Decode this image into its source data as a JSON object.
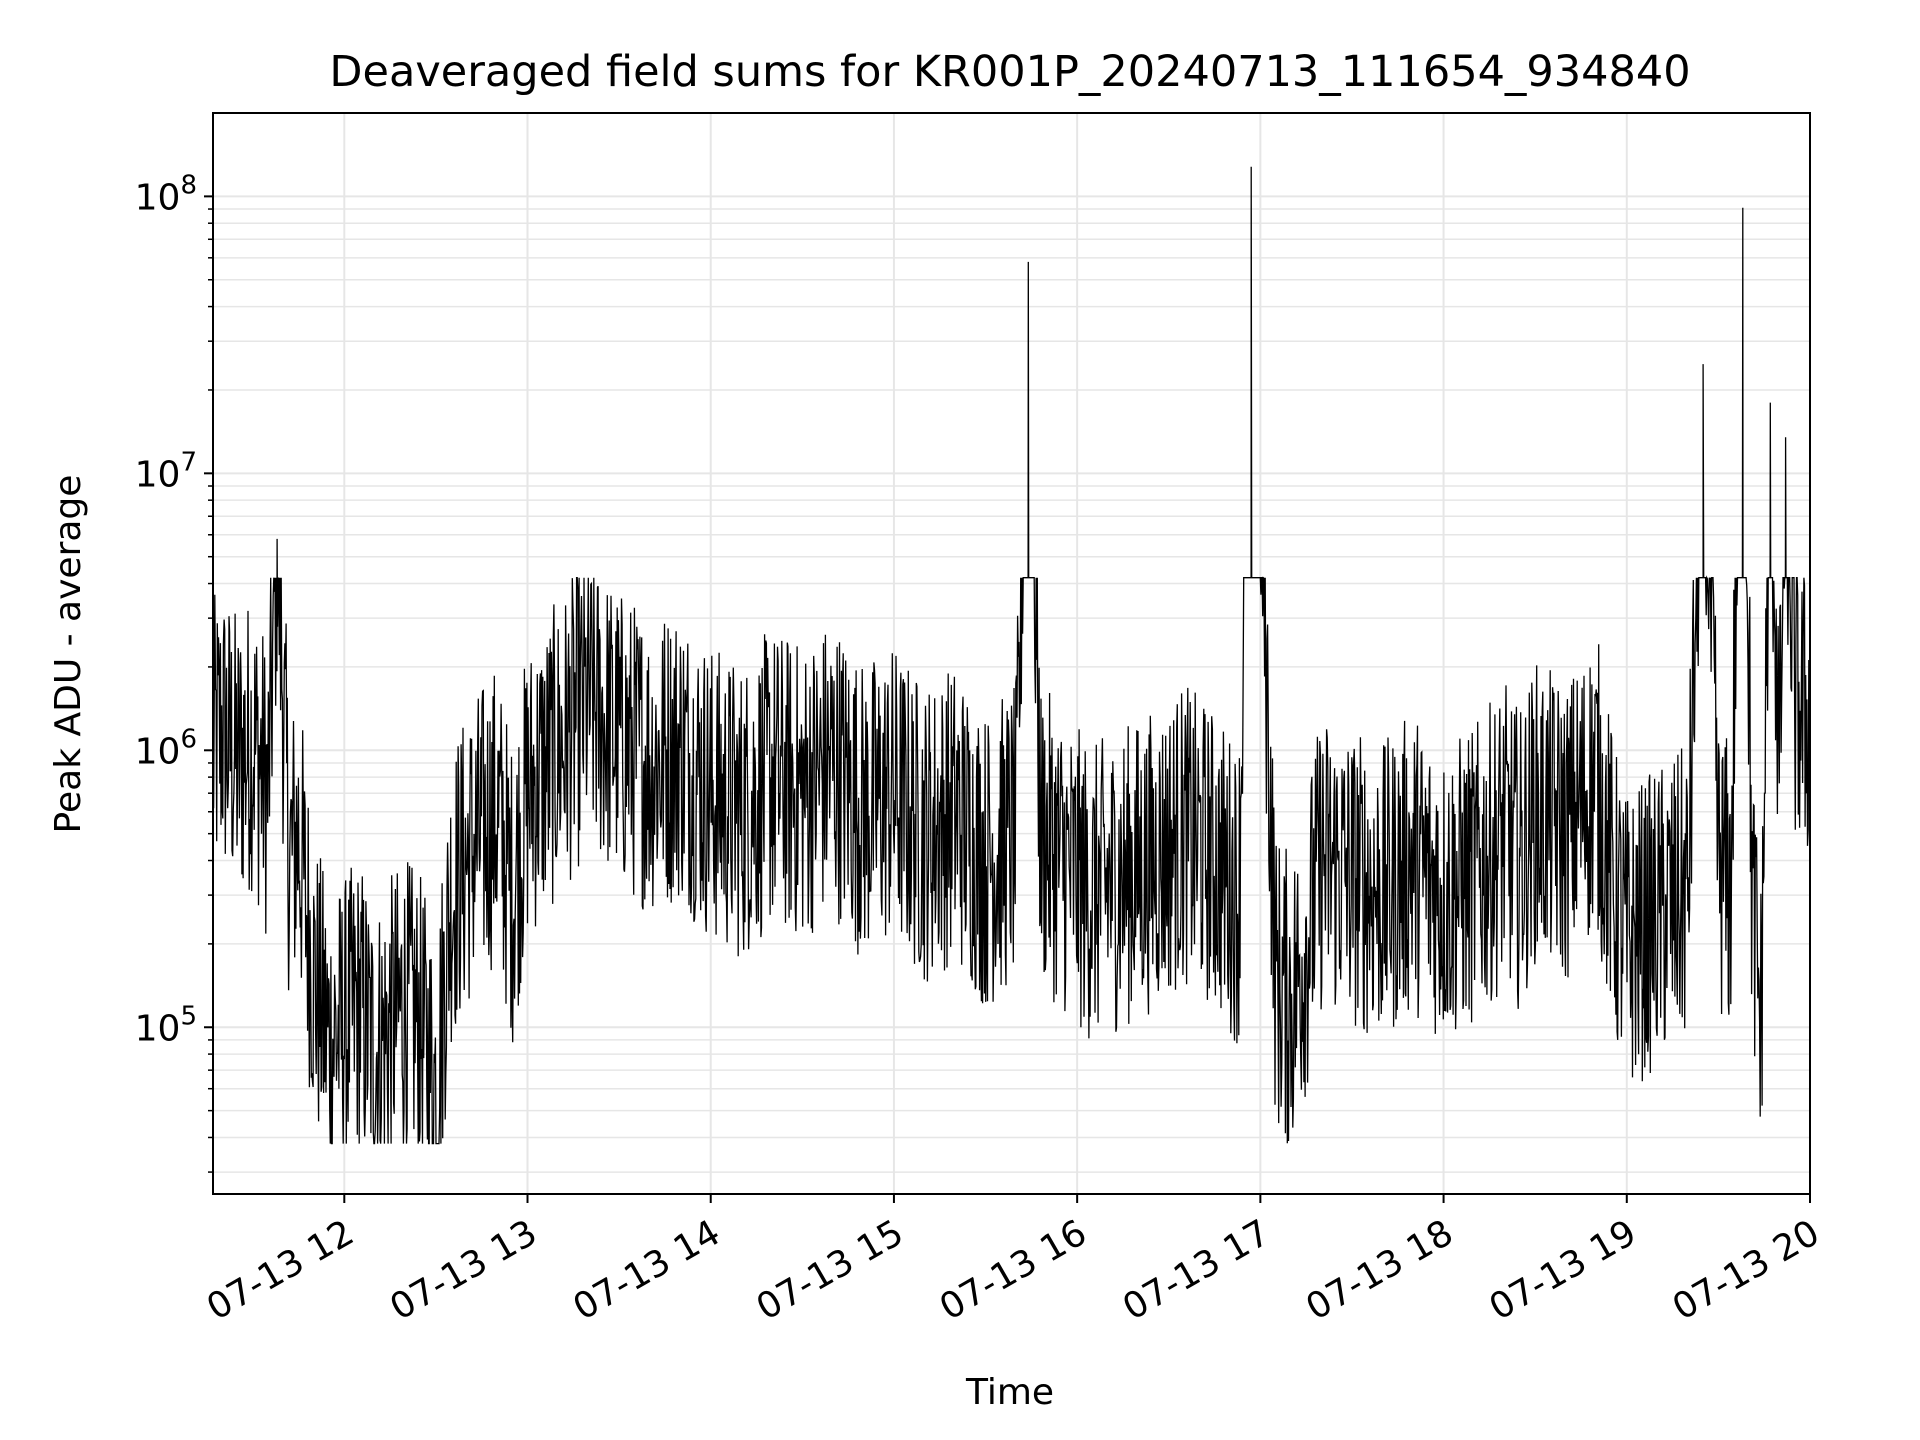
{
  "chart_data": {
    "type": "line",
    "title": "Deaveraged field sums for KR001P_20240713_111654_934840",
    "xlabel": "Time",
    "ylabel": "Peak ADU - average",
    "y_scale": "log",
    "ylim": [
      25000,
      200000000
    ],
    "xlim": [
      "07-13 11:17",
      "07-13 20:00"
    ],
    "x_ticks": [
      "07-13 12",
      "07-13 13",
      "07-13 14",
      "07-13 15",
      "07-13 16",
      "07-13 17",
      "07-13 18",
      "07-13 19",
      "07-13 20"
    ],
    "y_ticks": [
      {
        "base": "10",
        "exp": "5",
        "value": 100000
      },
      {
        "base": "10",
        "exp": "6",
        "value": 1000000
      },
      {
        "base": "10",
        "exp": "7",
        "value": 10000000
      },
      {
        "base": "10",
        "exp": "8",
        "value": 100000000
      }
    ],
    "grid": true,
    "line_color": "#000000",
    "grid_color": "#e6e6e6",
    "series": [
      {
        "x": [
          "07-13 11:17",
          "07-13 11:20",
          "07-13 11:25",
          "07-13 11:30",
          "07-13 11:35",
          "07-13 11:38",
          "07-13 11:42",
          "07-13 11:45",
          "07-13 11:50",
          "07-13 11:55",
          "07-13 12:00",
          "07-13 12:05",
          "07-13 12:10",
          "07-13 12:15",
          "07-13 12:20",
          "07-13 12:25",
          "07-13 12:30",
          "07-13 12:35",
          "07-13 12:40",
          "07-13 12:45",
          "07-13 12:50",
          "07-13 12:55",
          "07-13 13:00",
          "07-13 13:10",
          "07-13 13:20",
          "07-13 13:30",
          "07-13 13:40",
          "07-13 13:50",
          "07-13 14:00",
          "07-13 14:10",
          "07-13 14:20",
          "07-13 14:30",
          "07-13 14:40",
          "07-13 14:50",
          "07-13 15:00",
          "07-13 15:10",
          "07-13 15:20",
          "07-13 15:30",
          "07-13 15:40",
          "07-13 15:44",
          "07-13 15:48",
          "07-13 15:55",
          "07-13 16:05",
          "07-13 16:15",
          "07-13 16:25",
          "07-13 16:35",
          "07-13 16:45",
          "07-13 16:53",
          "07-13 16:57",
          "07-13 17:05",
          "07-13 17:10",
          "07-13 17:15",
          "07-13 17:20",
          "07-13 17:30",
          "07-13 17:40",
          "07-13 17:50",
          "07-13 18:00",
          "07-13 18:10",
          "07-13 18:20",
          "07-13 18:25",
          "07-13 18:30",
          "07-13 18:40",
          "07-13 18:50",
          "07-13 18:56",
          "07-13 19:00",
          "07-13 19:10",
          "07-13 19:20",
          "07-13 19:25",
          "07-13 19:30",
          "07-13 19:34",
          "07-13 19:38",
          "07-13 19:41",
          "07-13 19:44",
          "07-13 19:47",
          "07-13 19:50",
          "07-13 19:52",
          "07-13 19:55",
          "07-13 20:00"
        ],
        "y": [
          1000000,
          1200000,
          900000,
          1100000,
          700000,
          5800000,
          400000,
          500000,
          150000,
          90000,
          100000,
          120000,
          80000,
          100000,
          120000,
          100000,
          60000,
          300000,
          400000,
          500000,
          600000,
          300000,
          700000,
          1000000,
          1500000,
          1100000,
          900000,
          1000000,
          700000,
          600000,
          800000,
          700000,
          900000,
          600000,
          700000,
          500000,
          600000,
          400000,
          500000,
          58000000,
          500000,
          400000,
          300000,
          350000,
          400000,
          500000,
          400000,
          300000,
          128000000,
          150000,
          120000,
          200000,
          400000,
          350000,
          300000,
          400000,
          300000,
          350000,
          500000,
          400000,
          600000,
          500000,
          800000,
          300000,
          200000,
          250000,
          300000,
          24800000,
          400000,
          300000,
          91000000,
          300000,
          100000,
          18000000,
          800000,
          13500000,
          1500000,
          1300000
        ]
      }
    ]
  }
}
